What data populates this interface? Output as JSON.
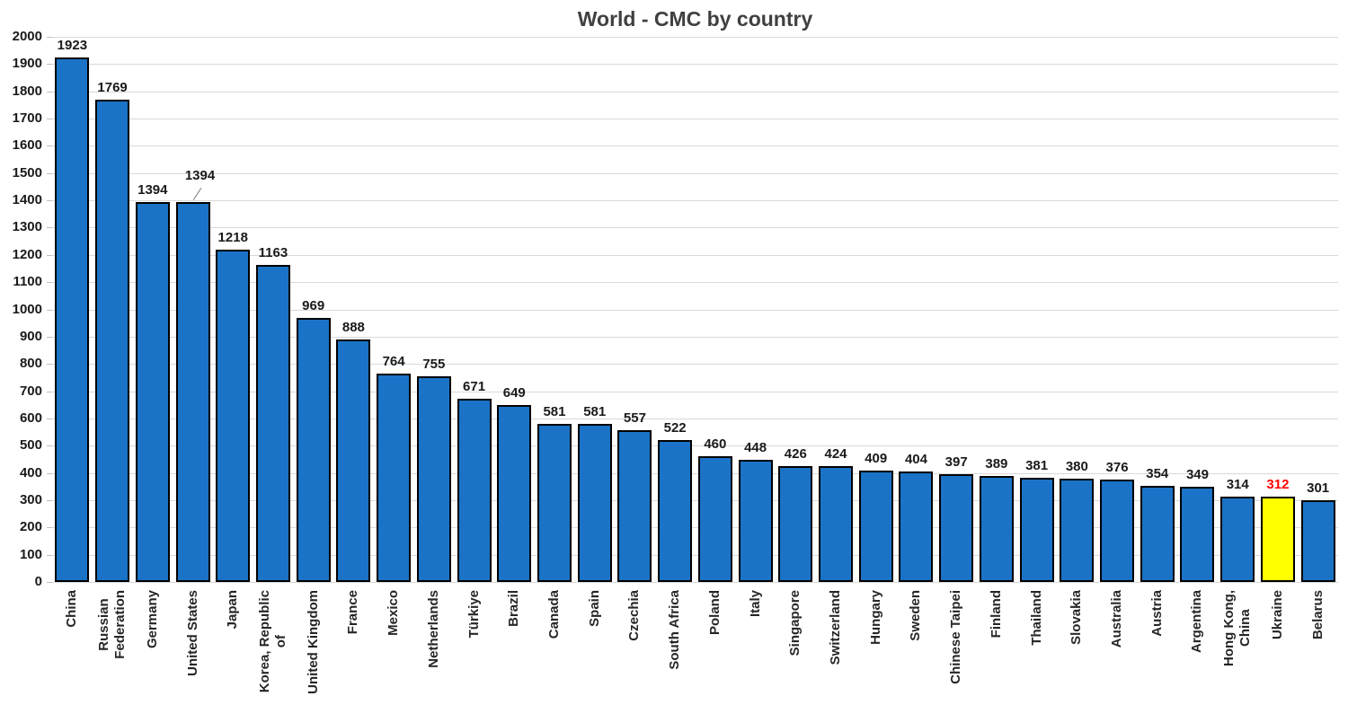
{
  "chart_data": {
    "type": "bar",
    "title": "World - CMC by country",
    "categories": [
      "China",
      "Russian Federation",
      "Germany",
      "United States",
      "Japan",
      "Korea, Republic of",
      "United Kingdom",
      "France",
      "Mexico",
      "Netherlands",
      "Türkiye",
      "Brazil",
      "Canada",
      "Spain",
      "Czechia",
      "South Africa",
      "Poland",
      "Italy",
      "Singapore",
      "Switzerland",
      "Hungary",
      "Sweden",
      "Chinese Taipei",
      "Finland",
      "Thailand",
      "Slovakia",
      "Australia",
      "Austria",
      "Argentina",
      "Hong Kong, China",
      "Ukraine",
      "Belarus"
    ],
    "category_lines": [
      [
        "China"
      ],
      [
        "Russian",
        "Federation"
      ],
      [
        "Germany"
      ],
      [
        "United States"
      ],
      [
        "Japan"
      ],
      [
        "Korea, Republic",
        "of"
      ],
      [
        "United Kingdom"
      ],
      [
        "France"
      ],
      [
        "Mexico"
      ],
      [
        "Netherlands"
      ],
      [
        "Türkiye"
      ],
      [
        "Brazil"
      ],
      [
        "Canada"
      ],
      [
        "Spain"
      ],
      [
        "Czechia"
      ],
      [
        "South Africa"
      ],
      [
        "Poland"
      ],
      [
        "Italy"
      ],
      [
        "Singapore"
      ],
      [
        "Switzerland"
      ],
      [
        "Hungary"
      ],
      [
        "Sweden"
      ],
      [
        "Chinese Taipei"
      ],
      [
        "Finland"
      ],
      [
        "Thailand"
      ],
      [
        "Slovakia"
      ],
      [
        "Australia"
      ],
      [
        "Austria"
      ],
      [
        "Argentina"
      ],
      [
        "Hong Kong,",
        "China"
      ],
      [
        "Ukraine"
      ],
      [
        "Belarus"
      ]
    ],
    "values": [
      1923,
      1769,
      1394,
      1394,
      1218,
      1163,
      969,
      888,
      764,
      755,
      671,
      649,
      581,
      581,
      557,
      522,
      460,
      448,
      426,
      424,
      409,
      404,
      397,
      389,
      381,
      380,
      376,
      354,
      349,
      314,
      312,
      301
    ],
    "xlabel": "",
    "ylabel": "",
    "ylim": [
      0,
      2000
    ],
    "ytick_step": 100,
    "grid": true,
    "legend": "none",
    "highlight_index": 30,
    "raised_label_index": 3,
    "colors": {
      "bar_fill": "#1a73c6",
      "bar_border": "#000000",
      "highlight_bar_fill": "#ffff00",
      "highlight_value_color": "#ff0000",
      "value_label_color": "#1a1a1a",
      "axis_label_color": "#262626",
      "title_color": "#404040",
      "gridline_color": "#d9d9d9",
      "tick_color": "#bfbfbf"
    }
  }
}
